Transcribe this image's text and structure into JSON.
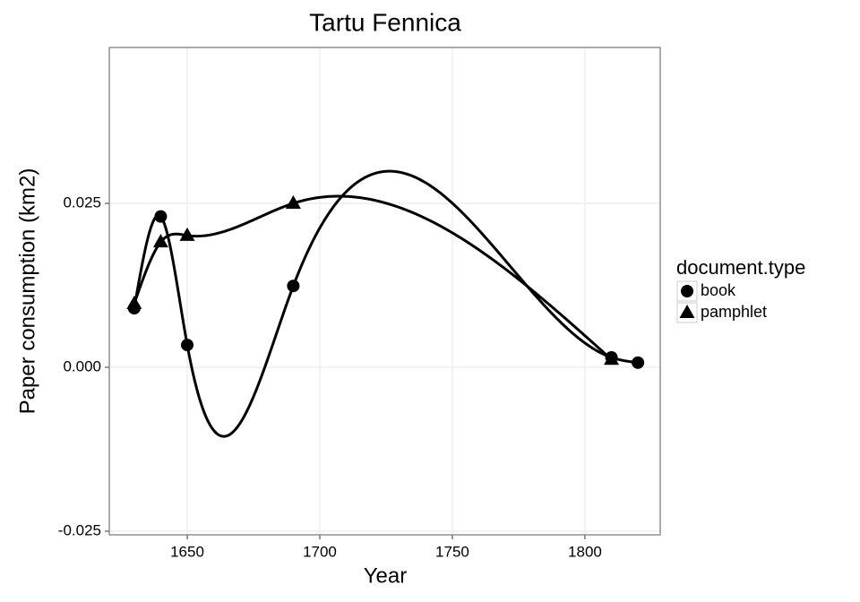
{
  "chart_data": {
    "type": "line",
    "title": "Tartu Fennica",
    "x_label": "Year",
    "y_label": "Paper consumption (km2)",
    "legend_title": "document.type",
    "legend_position": "right",
    "grid": true,
    "smooth": true,
    "series": [
      {
        "name": "book",
        "color": "#000000",
        "shape": "circle",
        "x": [
          1630,
          1640,
          1650,
          1690,
          1810,
          1820
        ],
        "values": [
          0.009,
          0.023,
          0.0034,
          0.0124,
          0.0015,
          0.0007
        ]
      },
      {
        "name": "pamphlet",
        "color": "#000000",
        "shape": "triangle",
        "x": [
          1630,
          1640,
          1650,
          1690,
          1810
        ],
        "values": [
          0.0097,
          0.0191,
          0.0201,
          0.025,
          0.0012
        ]
      }
    ],
    "xlim": [
      1620.6,
      1828.4
    ],
    "xticks": [
      1650,
      1700,
      1750,
      1800
    ],
    "ylim": [
      -0.02555,
      0.04877
    ],
    "yticks": [
      {
        "value": -0.025,
        "label": "-0.025"
      },
      {
        "value": 0,
        "label": "0.000"
      },
      {
        "value": 0.025,
        "label": "0.025"
      }
    ]
  }
}
